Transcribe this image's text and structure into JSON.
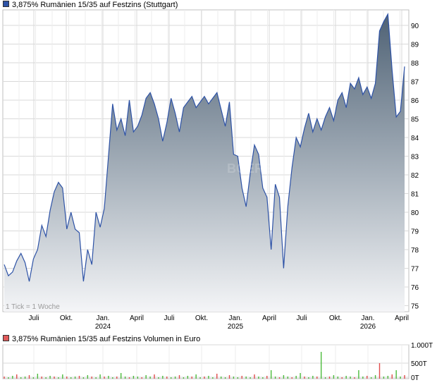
{
  "colors": {
    "price_line": "#2d52a6",
    "price_legend": "#2d52a6",
    "volume_legend": "#e05a5a",
    "volume_up": "#4cbb3c",
    "volume_down": "#e04b4b",
    "grid": "#d9d9d9"
  },
  "legend": {
    "price": "3,875% Rumänien 15/35 auf Festzins (Stuttgart)",
    "volume": "3,875% Rumänien 15/35 auf Festzins Volumen in Euro"
  },
  "note": "1 Tick = 1 Woche",
  "chart_data": [
    {
      "type": "area",
      "name": "price",
      "ylim": [
        74.8,
        91
      ],
      "yticks": [
        75,
        76,
        77,
        78,
        79,
        80,
        81,
        82,
        83,
        84,
        85,
        86,
        87,
        88,
        89,
        90
      ],
      "xticks": [
        "Juli",
        "Okt.",
        "Jan.",
        "April",
        "Juli",
        "Okt.",
        "Jan.",
        "April",
        "Juli",
        "Okt.",
        "Jan.",
        "April"
      ],
      "years": [
        "2024",
        "2025",
        "2026"
      ],
      "values": [
        77.2,
        76.6,
        76.8,
        77.4,
        77.8,
        77.3,
        76.3,
        77.5,
        78.0,
        79.3,
        78.7,
        80.1,
        81.1,
        81.6,
        81.3,
        79.1,
        80.0,
        79.1,
        78.9,
        76.3,
        78.0,
        77.2,
        80.0,
        79.2,
        80.2,
        83.0,
        85.8,
        84.4,
        85.0,
        84.1,
        86.0,
        84.3,
        84.6,
        85.2,
        86.1,
        86.4,
        85.8,
        85.0,
        83.8,
        84.8,
        86.1,
        85.3,
        84.3,
        85.6,
        85.9,
        86.2,
        85.6,
        85.9,
        86.2,
        85.8,
        86.1,
        86.4,
        85.5,
        84.6,
        85.9,
        83.1,
        83.0,
        81.3,
        80.3,
        82.1,
        83.6,
        83.1,
        81.3,
        80.8,
        78.0,
        81.5,
        80.8,
        77.0,
        80.3,
        82.4,
        84.0,
        83.5,
        84.5,
        85.3,
        84.3,
        85.0,
        84.4,
        85.1,
        85.6,
        84.9,
        86.0,
        86.4,
        85.6,
        86.9,
        86.6,
        87.2,
        86.3,
        86.7,
        86.1,
        86.9,
        89.7,
        90.2,
        90.6,
        87.6,
        85.1,
        85.4,
        87.8
      ],
      "volume": {
        "yticks": [
          "1.000T",
          "500T",
          "0T"
        ],
        "ylim": [
          0,
          1000
        ]
      }
    }
  ],
  "watermark": "BOERSE"
}
